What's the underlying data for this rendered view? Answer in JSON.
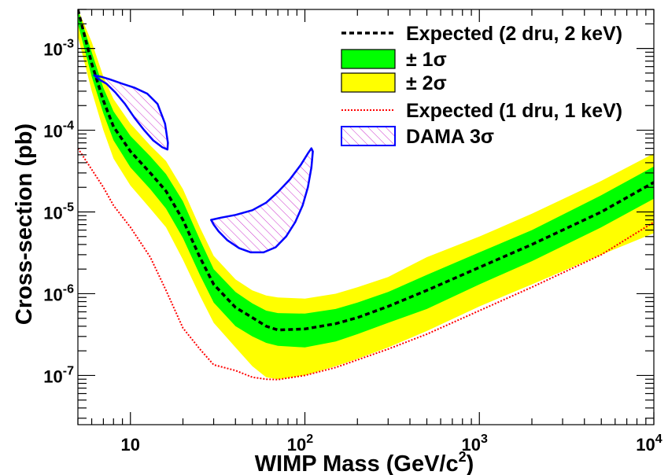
{
  "chart_data": {
    "type": "area",
    "title": "",
    "xlabel": "WIMP Mass (GeV/c",
    "xlabel_sup": "2",
    "xlabel_close": ")",
    "ylabel": "Cross-section (pb)",
    "xscale": "log",
    "yscale": "log",
    "xlim": [
      5,
      10000
    ],
    "ylim": [
      2.5e-08,
      0.003
    ],
    "grid": false,
    "legend_position": "top-right",
    "x_ticks": [
      {
        "value": 10,
        "base": "10",
        "exp": ""
      },
      {
        "value": 100,
        "base": "10",
        "exp": "2"
      },
      {
        "value": 1000,
        "base": "10",
        "exp": "3"
      },
      {
        "value": 10000,
        "base": "10",
        "exp": "4"
      }
    ],
    "y_ticks": [
      {
        "value": 1e-07,
        "base": "10",
        "exp": "-7"
      },
      {
        "value": 1e-06,
        "base": "10",
        "exp": "-6"
      },
      {
        "value": 1e-05,
        "base": "10",
        "exp": "-5"
      },
      {
        "value": 0.0001,
        "base": "10",
        "exp": "-4"
      },
      {
        "value": 0.001,
        "base": "10",
        "exp": "-3"
      }
    ],
    "colors": {
      "band_2sigma": "#ffff00",
      "band_1sigma": "#00ff00",
      "expected_2dru": "#000000",
      "expected_1dru": "#ff0000",
      "dama": "#0000ff",
      "dama_hatch": "#cc33cc"
    },
    "series": [
      {
        "name": "Expected (2 dru, 2 keV)",
        "style": "dashed-black",
        "x": [
          5,
          6,
          7,
          8,
          10,
          13,
          16,
          20,
          25,
          30,
          40,
          50,
          60,
          70,
          100,
          150,
          200,
          300,
          500,
          1000,
          2000,
          5000,
          10000
        ],
        "y": [
          0.003,
          0.00065,
          0.00023,
          0.00011,
          5.5e-05,
          3e-05,
          1.8e-05,
          8e-06,
          2.8e-06,
          1.3e-06,
          6.8e-07,
          5.1e-07,
          4e-07,
          3.6e-07,
          3.7e-07,
          4.3e-07,
          5.1e-07,
          7e-07,
          1.1e-06,
          2.1e-06,
          4e-06,
          1e-05,
          2.3e-05
        ]
      },
      {
        "name": "± 1σ",
        "style": "band-green",
        "x": [
          5,
          6,
          7,
          8,
          10,
          13,
          16,
          20,
          25,
          30,
          40,
          50,
          60,
          70,
          100,
          150,
          200,
          300,
          500,
          1000,
          2000,
          5000,
          10000
        ],
        "upper": [
          0.003,
          0.0009,
          0.00033,
          0.00017,
          8.5e-05,
          4.8e-05,
          2.9e-05,
          1.35e-05,
          4.6e-06,
          2e-06,
          1.05e-06,
          7.6e-07,
          6.2e-07,
          5.8e-07,
          5.7e-07,
          6.5e-07,
          7.8e-07,
          1.05e-06,
          1.7e-06,
          3.2e-06,
          6e-06,
          1.6e-05,
          3.6e-05
        ],
        "lower": [
          0.002,
          0.00045,
          0.00016,
          7.5e-05,
          3.5e-05,
          1.9e-05,
          1.1e-05,
          4.8e-06,
          1.7e-06,
          7.8e-07,
          4e-07,
          3e-07,
          2.5e-07,
          2.3e-07,
          2.2e-07,
          2.6e-07,
          3.2e-07,
          4.4e-07,
          6.5e-07,
          1.3e-06,
          2.5e-06,
          6.5e-06,
          1.45e-05
        ]
      },
      {
        "name": "± 2σ",
        "style": "band-yellow",
        "x": [
          5,
          6,
          7,
          8,
          10,
          13,
          16,
          20,
          25,
          30,
          40,
          50,
          60,
          70,
          100,
          150,
          200,
          300,
          500,
          1000,
          2000,
          5000,
          10000
        ],
        "upper": [
          0.003,
          0.0012,
          0.00045,
          0.00024,
          0.00012,
          6.5e-05,
          4.2e-05,
          1.9e-05,
          6.5e-06,
          2.9e-06,
          1.5e-06,
          1.1e-06,
          9.5e-07,
          9e-07,
          8.7e-07,
          1e-06,
          1.2e-06,
          1.6e-06,
          2.8e-06,
          5e-06,
          9.5e-06,
          2.4e-05,
          5.2e-05
        ],
        "lower": [
          0.0014,
          0.0003,
          0.0001,
          4.5e-05,
          2.1e-05,
          1.1e-05,
          6.5e-06,
          2.6e-06,
          9.5e-07,
          4.4e-07,
          2.2e-07,
          1.3e-07,
          9.5e-08,
          9e-08,
          1e-07,
          1.3e-07,
          1.6e-07,
          2.2e-07,
          3.5e-07,
          7e-07,
          1.3e-06,
          3e-06,
          5.5e-06
        ]
      },
      {
        "name": "Expected (1 dru, 1 keV)",
        "style": "dotted-red",
        "x": [
          5,
          6,
          7,
          8,
          10,
          13,
          16,
          20,
          25,
          30,
          40,
          50,
          60,
          70,
          100,
          150,
          200,
          300,
          500,
          1000,
          2000,
          5000,
          10000
        ],
        "y": [
          6e-05,
          3.3e-05,
          2e-05,
          1.2e-05,
          6.5e-06,
          2.8e-06,
          1.1e-06,
          3.8e-07,
          2.1e-07,
          1.35e-07,
          1.15e-07,
          9.5e-08,
          9e-08,
          8.9e-08,
          1e-07,
          1.25e-07,
          1.55e-07,
          2.1e-07,
          3.2e-07,
          6.2e-07,
          1.2e-06,
          3e-06,
          7.5e-06
        ]
      },
      {
        "name": "DAMA 3σ",
        "style": "hatched-contour",
        "regions": [
          {
            "x": [
              6.2,
              6.8,
              7.6,
              9.0,
              10.6,
              12.5,
              14.3,
              15.8,
              16.4,
              16.3,
              15.2,
              13.5,
              12.0,
              10.6,
              9.3,
              8.2,
              7.3,
              6.6,
              6.2
            ],
            "y": [
              0.00047,
              0.00045,
              0.00042,
              0.00037,
              0.00033,
              0.00028,
              0.00021,
              0.00012,
              7e-05,
              5.8e-05,
              6.2e-05,
              7.5e-05,
              0.0001,
              0.00014,
              0.00021,
              0.00029,
              0.00037,
              0.00042,
              0.00047
            ]
          },
          {
            "x": [
              29,
              33,
              40,
              50,
              60,
              70,
              82,
              95,
              104,
              109,
              111,
              109,
              104,
              97,
              88,
              78,
              68,
              58,
              49,
              42,
              36,
              32,
              30,
              29
            ],
            "y": [
              8e-06,
              8.5e-06,
              9.2e-06,
              1.05e-05,
              1.3e-05,
              1.75e-05,
              2.5e-05,
              3.8e-05,
              5.2e-05,
              6e-05,
              5.5e-05,
              3.5e-05,
              2e-05,
              1.2e-05,
              7.5e-06,
              5e-06,
              3.7e-06,
              3.2e-06,
              3.2e-06,
              3.6e-06,
              4.5e-06,
              5.8e-06,
              7e-06,
              8e-06
            ]
          }
        ]
      }
    ],
    "legend": [
      {
        "key": "expected_2dru",
        "text": "Expected (2 dru, 2 keV)"
      },
      {
        "key": "band_1sigma",
        "text": "± 1σ"
      },
      {
        "key": "band_2sigma",
        "text": "± 2σ"
      },
      {
        "key": "expected_1dru",
        "text": "Expected (1 dru, 1 keV)"
      },
      {
        "key": "dama",
        "text": "DAMA 3σ"
      }
    ]
  }
}
